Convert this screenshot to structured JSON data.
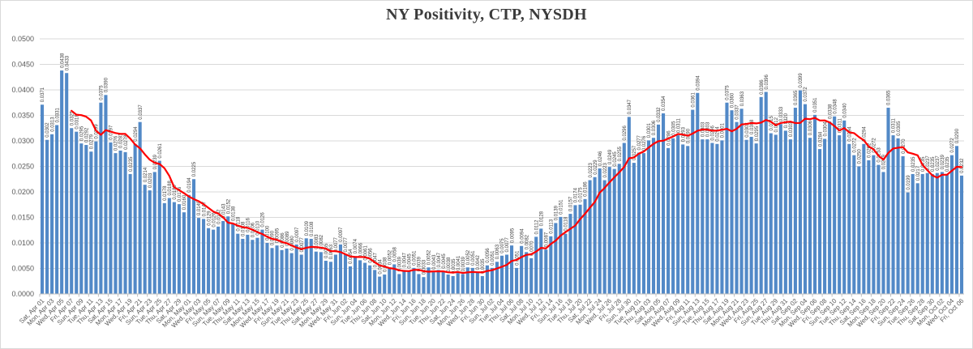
{
  "title": "NY Positivity, CTP, NYSDH",
  "colors": {
    "bar": "#5289c7",
    "line": "#ff0000",
    "grid": "#d9d9d9",
    "axis_line": "#bfbfbf",
    "axis_text": "#595959",
    "bar_label_text": "#404040",
    "title_text": "#3b3b3b",
    "chart_border": "#d9d9d9"
  },
  "chart_data": {
    "type": "bar",
    "title": "NY Positivity, CTP, NYSDH",
    "xlabel": "",
    "ylabel": "",
    "ylim": [
      0,
      0.05
    ],
    "grid": "horizontal",
    "legend": "none",
    "bar_label_format": "0.0000",
    "bar_labels": "every bar labeled with its value, rotated 90 degrees",
    "y_tick_labels": [
      "0.0000",
      "0.0050",
      "0.0100",
      "0.0150",
      "0.0200",
      "0.0250",
      "0.0300",
      "0.0350",
      "0.0400",
      "0.0450",
      "0.0500"
    ],
    "x_tick_every": 2,
    "x_tick_labels": [
      "Sat, Apr 01",
      "Mon, Apr 03",
      "Wed, Apr 05",
      "Fri, Apr 07",
      "Sun, Apr 09",
      "Tue, Apr 11",
      "Thu, Apr 13",
      "Sat, Apr 15",
      "Mon, Apr 17",
      "Wed, Apr 19",
      "Fri, Apr 21",
      "Sun, Apr 23",
      "Tue, Apr 25",
      "Thu, Apr 27",
      "Sat, Apr 29",
      "Mon, May 01",
      "Wed, May 03",
      "Fri, May 05",
      "Sun, May 07",
      "Tue, May 09",
      "Thu, May 11",
      "Sat, May 13",
      "Mon, May 15",
      "Wed, May 17",
      "Fri, May 19",
      "Sun, May 21",
      "Tue, May 23",
      "Thu, May 25",
      "Sat, May 27",
      "Mon, May 29",
      "Wed, May 31",
      "Fri, Jun 02",
      "Sun, Jun 04",
      "Tue, Jun 06",
      "Thu, Jun 08",
      "Sat, Jun 10",
      "Mon, Jun 12",
      "Wed, Jun 14",
      "Fri, Jun 16",
      "Sun, Jun 18",
      "Tue, Jun 20",
      "Thu, Jun 22",
      "Sat, Jun 24",
      "Mon, Jun 26",
      "Wed, Jun 28",
      "Fri, Jun 30",
      "Sun, Jul 02",
      "Tue, Jul 04",
      "Thu, Jul 06",
      "Sat, Jul 08",
      "Mon, Jul 10",
      "Wed, Jul 12",
      "Fri, Jul 14",
      "Sun, Jul 16",
      "Tue, Jul 18",
      "Thu, Jul 20",
      "Sat, Jul 22",
      "Mon, Jul 24",
      "Wed, Jul 26",
      "Fri, Jul 28",
      "Sun, Jul 30",
      "Tue, Aug 01",
      "Thu, Aug 03",
      "Sat, Aug 05",
      "Mon, Aug 07",
      "Wed, Aug 09",
      "Fri, Aug 11",
      "Sun, Aug 13",
      "Tue, Aug 15",
      "Thu, Aug 17",
      "Sat, Aug 19",
      "Mon, Aug 21",
      "Wed, Aug 23",
      "Fri, Aug 25",
      "Sun, Aug 27",
      "Tue, Aug 29",
      "Thu, Aug 31",
      "Sat, Sep 02",
      "Mon, Sep 04",
      "Wed, Sep 06",
      "Fri, Sep 08",
      "Sun, Sep 10",
      "Tue, Sep 12",
      "Thu, Sep 14",
      "Sat, Sep 16",
      "Mon, Sep 18",
      "Wed, Sep 20",
      "Fri, Sep 22",
      "Sun, Sep 24",
      "Tue, Sep 26",
      "Thu, Sep 28",
      "Sat, Sep 30",
      "Mon, Oct 02",
      "Wed, Oct 04",
      "Fri, Oct 06"
    ],
    "series": [
      {
        "name": "Daily positivity (bars)",
        "values": [
          0.0371,
          0.0302,
          0.0313,
          0.0331,
          0.0438,
          0.0433,
          0.0325,
          0.0318,
          0.0295,
          0.0292,
          0.0279,
          0.0299,
          0.0375,
          0.039,
          0.0297,
          0.0276,
          0.0281,
          0.0278,
          0.0235,
          0.0294,
          0.0337,
          0.0214,
          0.0203,
          0.0239,
          0.0261,
          0.0178,
          0.0188,
          0.018,
          0.0176,
          0.016,
          0.0194,
          0.0225,
          0.0149,
          0.0147,
          0.0129,
          0.0126,
          0.0132,
          0.0143,
          0.0152,
          0.0138,
          0.0118,
          0.0108,
          0.0116,
          0.0106,
          0.011,
          0.0126,
          0.01,
          0.009,
          0.0095,
          0.0086,
          0.0089,
          0.008,
          0.0097,
          0.0077,
          0.0109,
          0.0108,
          0.0083,
          0.0082,
          0.0065,
          0.0063,
          0.0077,
          0.0097,
          0.0077,
          0.0054,
          0.0074,
          0.0066,
          0.0061,
          0.0056,
          0.0047,
          0.0034,
          0.0038,
          0.0052,
          0.0058,
          0.0039,
          0.0047,
          0.0045,
          0.0051,
          0.0039,
          0.0033,
          0.0052,
          0.0043,
          0.0047,
          0.0045,
          0.0038,
          0.0035,
          0.0041,
          0.0039,
          0.0052,
          0.0051,
          0.0042,
          0.0035,
          0.0056,
          0.0051,
          0.0063,
          0.0075,
          0.0077,
          0.0095,
          0.0051,
          0.0094,
          0.0082,
          0.007,
          0.0112,
          0.0128,
          0.0087,
          0.0113,
          0.0139,
          0.0151,
          0.0118,
          0.0157,
          0.0174,
          0.0175,
          0.0186,
          0.0223,
          0.0229,
          0.0246,
          0.0223,
          0.0249,
          0.0245,
          0.0255,
          0.0296,
          0.0347,
          0.0257,
          0.0277,
          0.0276,
          0.0301,
          0.0306,
          0.0332,
          0.0354,
          0.0286,
          0.0305,
          0.0311,
          0.0293,
          0.029,
          0.0361,
          0.0394,
          0.0303,
          0.0303,
          0.0296,
          0.0294,
          0.0301,
          0.0375,
          0.036,
          0.0337,
          0.0363,
          0.0302,
          0.0308,
          0.0295,
          0.0386,
          0.0396,
          0.0315,
          0.0312,
          0.0333,
          0.032,
          0.0303,
          0.0365,
          0.0399,
          0.0372,
          0.0306,
          0.0351,
          0.0284,
          0.0304,
          0.0338,
          0.0348,
          0.0311,
          0.034,
          0.0294,
          0.0272,
          0.025,
          0.0294,
          0.0262,
          0.0272,
          0.0253,
          0.0239,
          0.0365,
          0.0311,
          0.0305,
          0.027,
          0.0199,
          0.0235,
          0.0217,
          0.0235,
          0.0237,
          0.0235,
          0.0237,
          0.0239,
          0.0235,
          0.0272,
          0.029,
          0.0232
        ]
      },
      {
        "name": "7-day moving average (red line)",
        "derived": "trailing 7-day mean of bar values",
        "window": 7
      }
    ]
  }
}
